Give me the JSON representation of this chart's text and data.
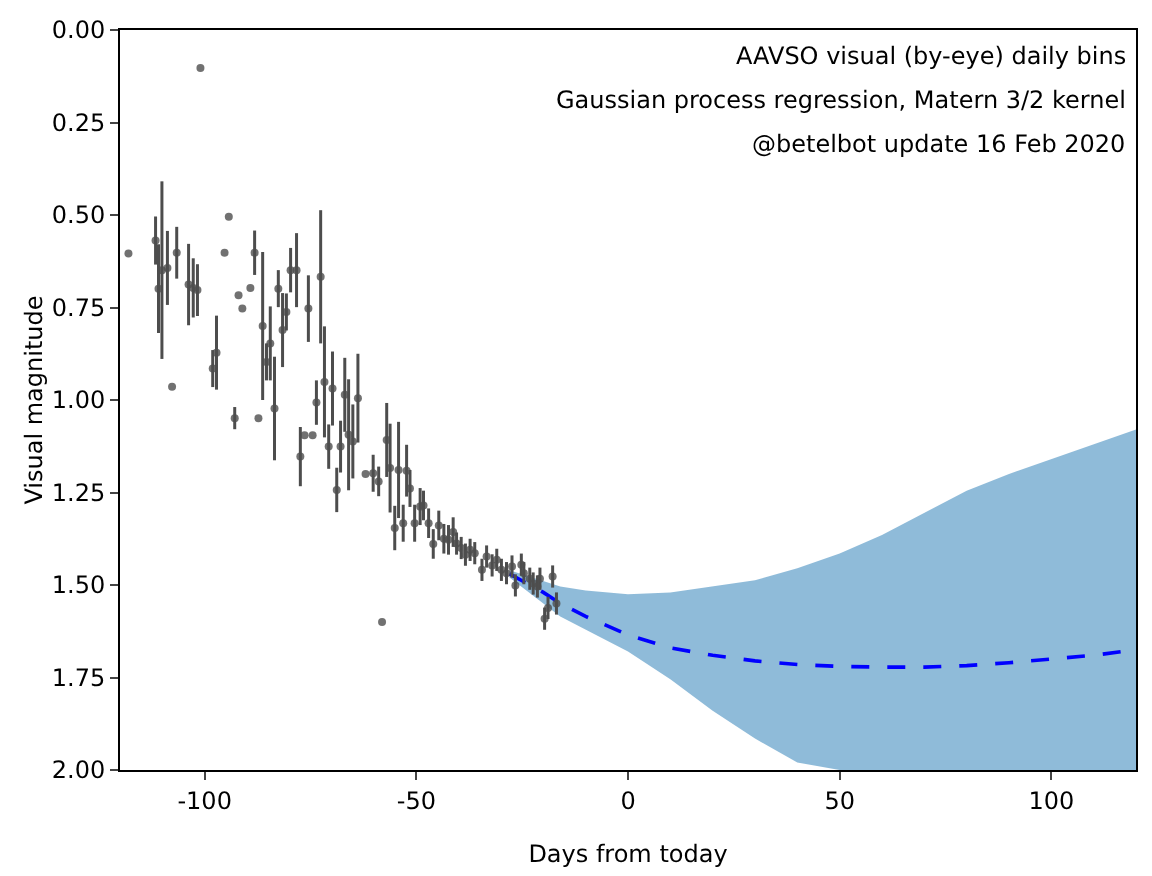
{
  "chart_data": {
    "type": "scatter",
    "xlabel": "Days from today",
    "ylabel": "Visual magnitude",
    "annotations": [
      "AAVSO visual (by-eye) daily bins",
      "Gaussian process regression, Matern 3/2 kernel",
      "@betelbot update 16 Feb 2020"
    ],
    "xlim": [
      -120,
      120
    ],
    "xticks": [
      -100,
      -50,
      0,
      50,
      100
    ],
    "ylim": [
      2,
      0
    ],
    "yticks": [
      {
        "value": 0,
        "label": "0.00"
      },
      {
        "value": 0.25,
        "label": "0.25"
      },
      {
        "value": 0.5,
        "label": "0.50"
      },
      {
        "value": 0.75,
        "label": "0.75"
      },
      {
        "value": 1,
        "label": "1.00"
      },
      {
        "value": 1.25,
        "label": "1.25"
      },
      {
        "value": 1.5,
        "label": "1.50"
      },
      {
        "value": 1.75,
        "label": "1.75"
      },
      {
        "value": 2,
        "label": "2.00"
      }
    ],
    "grid": false,
    "series": [
      {
        "type": "line",
        "color": "#0000ff",
        "line_style": "dashed",
        "marker": "none",
        "x": [
          -28,
          -20,
          -16,
          -10,
          0,
          10,
          20,
          30,
          40,
          50,
          60,
          70,
          80,
          90,
          100,
          110,
          120
        ],
        "values": [
          1.47,
          1.52,
          1.55,
          1.585,
          1.635,
          1.67,
          1.69,
          1.705,
          1.715,
          1.72,
          1.722,
          1.722,
          1.718,
          1.71,
          1.7,
          1.69,
          1.675
        ],
        "upper": [
          1.46,
          1.49,
          1.504,
          1.515,
          1.525,
          1.52,
          1.505,
          1.487,
          1.455,
          1.415,
          1.365,
          1.305,
          1.245,
          1.2,
          1.16,
          1.12,
          1.08
        ],
        "lower": [
          1.48,
          1.55,
          1.585,
          1.62,
          1.68,
          1.755,
          1.84,
          1.915,
          1.98,
          2,
          2,
          2,
          2,
          2,
          2,
          2,
          2
        ]
      },
      {
        "color": "#4d4d4d",
        "marker": "circle",
        "x": [
          -118.0,
          -111.6,
          -110.9,
          -110.1,
          -108.8,
          -107.7,
          -106.6,
          -103.8,
          -102.7,
          -101.7,
          -101.0,
          -98.1,
          -97.2,
          -95.3,
          -94.3,
          -92.9,
          -92.0,
          -91.1,
          -89.2,
          -88.2,
          -87.3,
          -86.3,
          -85.4,
          -84.5,
          -83.5,
          -82.6,
          -81.6,
          -80.7,
          -79.7,
          -78.3,
          -77.4,
          -76.4,
          -74.5,
          -75.5,
          -73.6,
          -72.6,
          -71.7,
          -70.7,
          -69.8,
          -68.8,
          -67.9,
          -66.9,
          -66.0,
          -65.0,
          -63.8,
          -62.0,
          -58.1,
          -57.0,
          -60.2,
          -58.9,
          -56.2,
          -55.1,
          -54.2,
          -53.1,
          -52.3,
          -51.5,
          -50.4,
          -49.1,
          -48.3,
          -47.1,
          -46.0,
          -44.7,
          -43.5,
          -42.4,
          -41.3,
          -40.5,
          -39.4,
          -38.4,
          -37.3,
          -36.2,
          -34.5,
          -33.4,
          -32.1,
          -31.0,
          -29.9,
          -28.7,
          -27.4,
          -26.6,
          -25.2,
          -24.6,
          -23.2,
          -22.4,
          -21.4,
          -20.8,
          -19.7,
          -18.9,
          -17.8,
          -16.9
        ],
        "values": [
          0.604,
          0.569,
          0.699,
          0.649,
          0.643,
          0.964,
          0.602,
          0.688,
          0.697,
          0.703,
          0.103,
          0.915,
          0.872,
          0.602,
          0.505,
          1.049,
          0.717,
          0.753,
          0.697,
          0.602,
          1.049,
          0.8,
          0.897,
          0.847,
          1.023,
          0.699,
          0.811,
          0.762,
          0.649,
          0.649,
          1.153,
          1.095,
          1.095,
          0.753,
          1.007,
          0.667,
          0.951,
          1.126,
          0.969,
          1.243,
          1.126,
          0.986,
          1.094,
          1.112,
          0.995,
          1.2,
          1.6,
          1.108,
          1.198,
          1.22,
          1.184,
          1.346,
          1.189,
          1.333,
          1.191,
          1.239,
          1.333,
          1.288,
          1.285,
          1.333,
          1.389,
          1.339,
          1.375,
          1.378,
          1.357,
          1.388,
          1.4,
          1.418,
          1.405,
          1.414,
          1.459,
          1.423,
          1.447,
          1.432,
          1.459,
          1.468,
          1.45,
          1.501,
          1.445,
          1.468,
          1.483,
          1.496,
          1.504,
          1.483,
          1.591,
          1.562,
          1.477,
          1.55
        ],
        "errors": [
          null,
          0.065,
          0.12,
          0.24,
          0.1,
          null,
          0.07,
          0.11,
          0.08,
          0.07,
          null,
          0.05,
          0.1,
          null,
          null,
          0.03,
          null,
          null,
          null,
          0.06,
          null,
          0.2,
          0.05,
          0.1,
          0.14,
          0.05,
          0.1,
          0.05,
          0.06,
          0.1,
          0.08,
          null,
          null,
          0.09,
          0.06,
          0.18,
          0.15,
          0.06,
          0.1,
          0.06,
          0.07,
          0.1,
          0.15,
          0.1,
          0.12,
          null,
          null,
          0.1,
          0.05,
          0.04,
          0.12,
          0.06,
          0.13,
          0.05,
          0.07,
          0.05,
          0.05,
          0.05,
          0.04,
          0.04,
          0.04,
          0.04,
          0.04,
          0.04,
          0.04,
          0.03,
          0.03,
          0.03,
          0.03,
          0.03,
          0.03,
          0.03,
          0.03,
          0.03,
          0.03,
          0.03,
          0.03,
          0.03,
          0.03,
          0.03,
          0.03,
          0.03,
          0.03,
          0.03,
          0.03,
          0.03,
          0.03,
          0.03
        ]
      }
    ]
  }
}
